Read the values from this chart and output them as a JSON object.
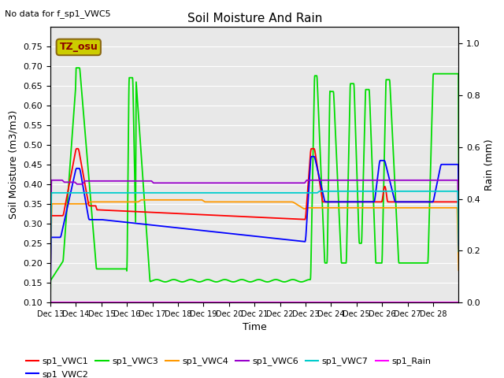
{
  "title": "Soil Moisture And Rain",
  "subtitle": "No data for f_sp1_VWC5",
  "xlabel": "Time",
  "ylabel_left": "Soil Moisture (m3/m3)",
  "ylabel_right": "Rain (mm)",
  "annotation": "TZ_osu",
  "ylim_left": [
    0.1,
    0.8
  ],
  "ylim_right": [
    0.0,
    1.0666
  ],
  "yticks_left": [
    0.1,
    0.15,
    0.2,
    0.25,
    0.3,
    0.35,
    0.4,
    0.45,
    0.5,
    0.55,
    0.6,
    0.65,
    0.7,
    0.75
  ],
  "yticks_right": [
    0.0,
    0.2,
    0.4,
    0.6,
    0.8,
    1.0
  ],
  "xtick_labels": [
    "Dec 13",
    "Dec 14",
    "Dec 15",
    "Dec 16",
    "Dec 17",
    "Dec 18",
    "Dec 19",
    "Dec 20",
    "Dec 21",
    "Dec 22",
    "Dec 23",
    "Dec 24",
    "Dec 25",
    "Dec 26",
    "Dec 27",
    "Dec 28"
  ],
  "colors": {
    "VWC1": "#ff0000",
    "VWC2": "#0000ff",
    "VWC3": "#00dd00",
    "VWC4": "#ff9900",
    "VWC6": "#9900cc",
    "VWC7": "#00cccc",
    "Rain": "#ff00ff",
    "annotation_bg": "#cccc00",
    "plot_bg": "#e8e8e8",
    "grid": "#ffffff"
  }
}
